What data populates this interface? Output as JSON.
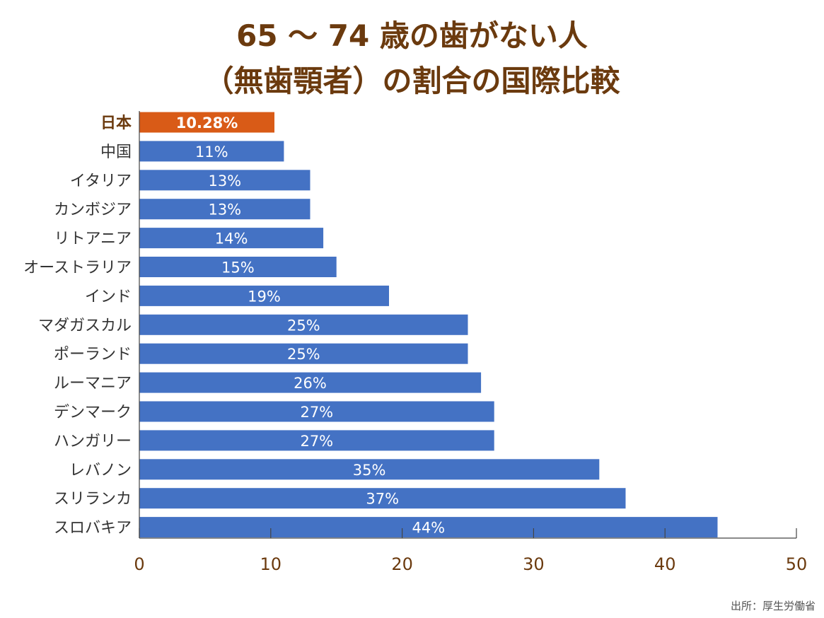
{
  "title_line1": "65 ～ 74 歳の歯がない人",
  "title_line2": "（無歯顎者）の割合の国際比較",
  "source": "出所：厚生労働省",
  "colors": {
    "highlight": "#d95b17",
    "bar": "#4472c4",
    "title": "#6b3a0e",
    "label": "#333333"
  },
  "chart_data": {
    "type": "bar",
    "orientation": "horizontal",
    "title": "65 ～ 74 歳の歯がない人（無歯顎者）の割合の国際比較",
    "categories": [
      "日本",
      "中国",
      "イタリア",
      "カンボジア",
      "リトアニア",
      "オーストラリア",
      "インド",
      "マダガスカル",
      "ポーランド",
      "ルーマニア",
      "デンマーク",
      "ハンガリー",
      "レバノン",
      "スリランカ",
      "スロバキア"
    ],
    "values": [
      10.28,
      11,
      13,
      13,
      14,
      15,
      19,
      25,
      25,
      26,
      27,
      27,
      35,
      37,
      44
    ],
    "data_labels": [
      "10.28%",
      "11%",
      "13%",
      "13%",
      "14%",
      "15%",
      "19%",
      "25%",
      "25%",
      "26%",
      "27%",
      "27%",
      "35%",
      "37%",
      "44%"
    ],
    "highlight_category": "日本",
    "xlim": [
      0,
      50
    ],
    "xticks": [
      0,
      10,
      20,
      30,
      40,
      50
    ],
    "grid": false,
    "xlabel": "",
    "ylabel": ""
  }
}
